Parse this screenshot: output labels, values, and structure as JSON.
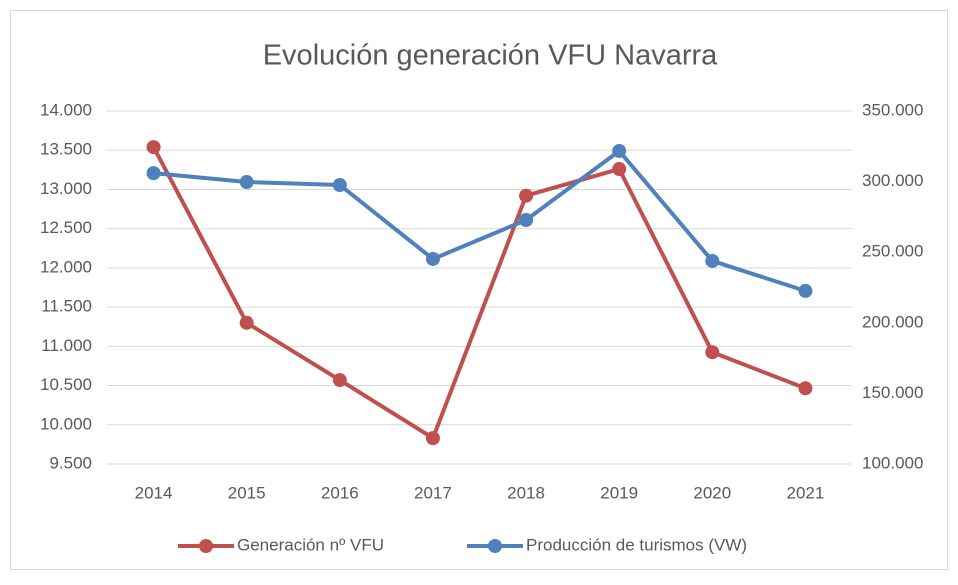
{
  "chart_data": {
    "type": "line",
    "title": "Evolución generación VFU Navarra",
    "categories": [
      "2014",
      "2015",
      "2016",
      "2017",
      "2018",
      "2019",
      "2020",
      "2021"
    ],
    "series": [
      {
        "name": "Generación nº VFU",
        "color": "#c0504d",
        "values": [
          13540,
          11300,
          10570,
          9830,
          12920,
          13260,
          10925,
          10465
        ]
      },
      {
        "name": "Producción de turismos (VW)",
        "color": "#4f81bd",
        "axis": "y2",
        "values": [
          306000,
          299700,
          297600,
          245200,
          272800,
          321700,
          243800,
          222600
        ]
      }
    ],
    "ylim": [
      9500,
      14000
    ],
    "yticks": [
      {
        "value": 9500,
        "label": "9.500"
      },
      {
        "value": 10000,
        "label": "10.000"
      },
      {
        "value": 10500,
        "label": "10.500"
      },
      {
        "value": 11000,
        "label": "11.000"
      },
      {
        "value": 11500,
        "label": "11.500"
      },
      {
        "value": 12000,
        "label": "12.000"
      },
      {
        "value": 12500,
        "label": "12.500"
      },
      {
        "value": 13000,
        "label": "13.000"
      },
      {
        "value": 13500,
        "label": "13.500"
      },
      {
        "value": 14000,
        "label": "14.000"
      }
    ],
    "y2lim": [
      100000,
      350000
    ],
    "y2ticks": [
      {
        "value": 100000,
        "label": "100.000"
      },
      {
        "value": 150000,
        "label": "150.000"
      },
      {
        "value": 200000,
        "label": "200.000"
      },
      {
        "value": 250000,
        "label": "250.000"
      },
      {
        "value": 300000,
        "label": "300.000"
      },
      {
        "value": 350000,
        "label": "350.000"
      }
    ],
    "grid": true,
    "legend": "bottom"
  }
}
